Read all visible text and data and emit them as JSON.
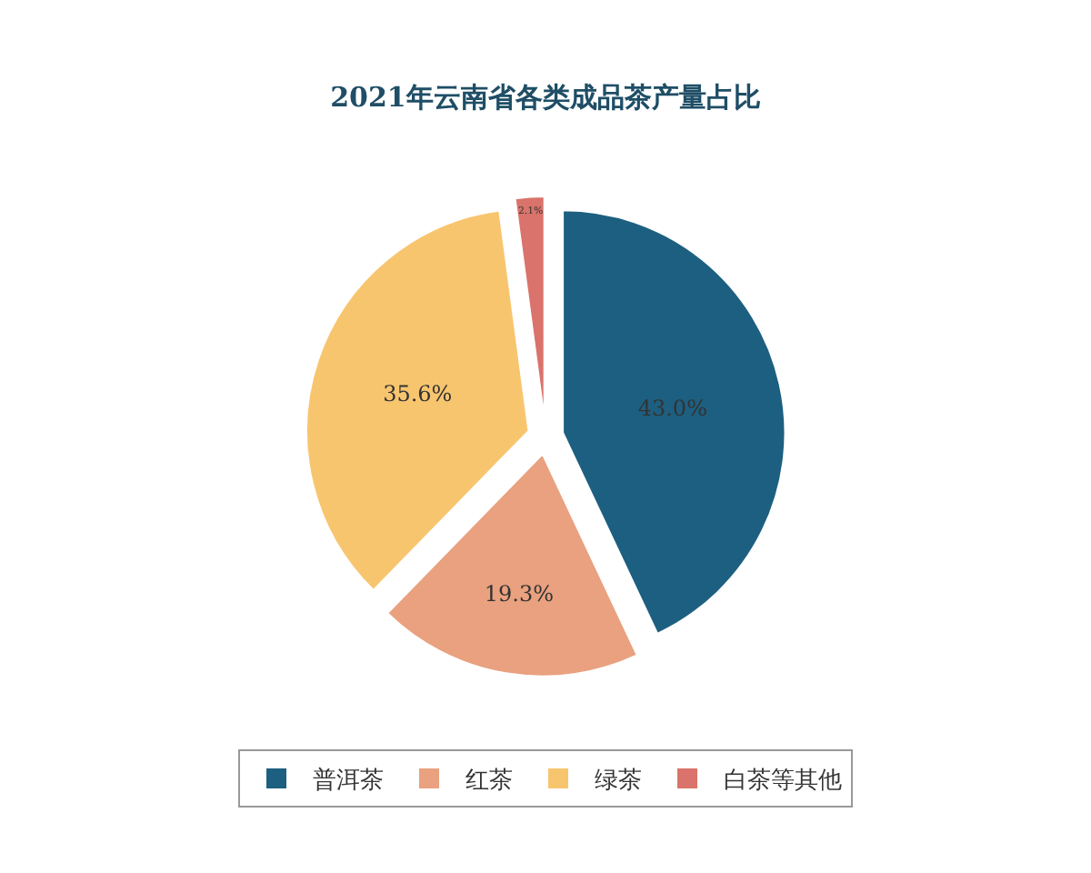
{
  "chart_data": {
    "type": "pie",
    "title": "2021年云南省各类成品茶产量占比",
    "categories": [
      "普洱茶",
      "红茶",
      "绿茶",
      "白茶等其他"
    ],
    "values": [
      43.0,
      19.3,
      35.6,
      2.1
    ],
    "value_labels": [
      "43.0%",
      "19.3%",
      "35.6%",
      "2.1%"
    ],
    "colors": [
      "#1d5f80",
      "#e9a17f",
      "#f8c56f",
      "#d9736b"
    ],
    "legend": "bottom"
  }
}
